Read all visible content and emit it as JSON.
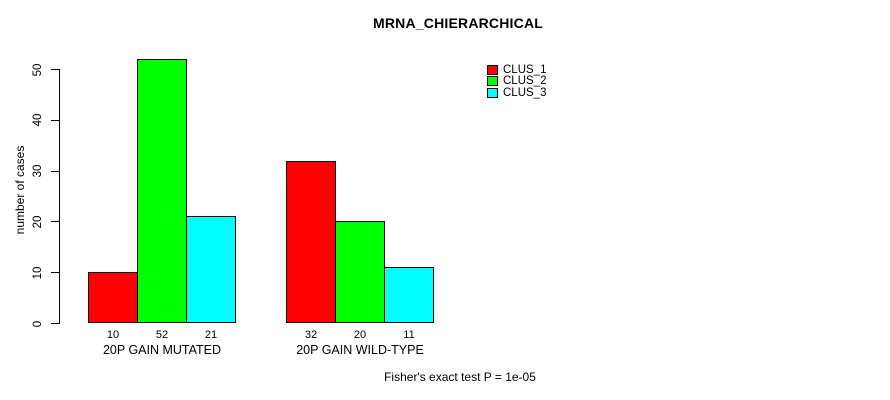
{
  "chart_data": {
    "type": "bar",
    "title": "MRNA_CHIERARCHICAL",
    "ylabel": "number of cases",
    "xlabel": "",
    "ylim": [
      0,
      50
    ],
    "yticks": [
      0,
      10,
      20,
      30,
      40,
      50
    ],
    "grid": false,
    "legend_position": "top-right",
    "categories": [
      "20P GAIN MUTATED",
      "20P GAIN WILD-TYPE"
    ],
    "series": [
      {
        "name": "CLUS_1",
        "color": "#FF0000",
        "values": [
          10,
          32
        ]
      },
      {
        "name": "CLUS_2",
        "color": "#00FF00",
        "values": [
          52,
          20
        ]
      },
      {
        "name": "CLUS_3",
        "color": "#00FFFF",
        "values": [
          21,
          11
        ]
      }
    ],
    "value_labels_shown": true,
    "annotation": "Fisher's exact test P = 1e-05"
  },
  "colors": {
    "background": "#FFFFFF",
    "axis": "#000000",
    "text": "#000000"
  }
}
